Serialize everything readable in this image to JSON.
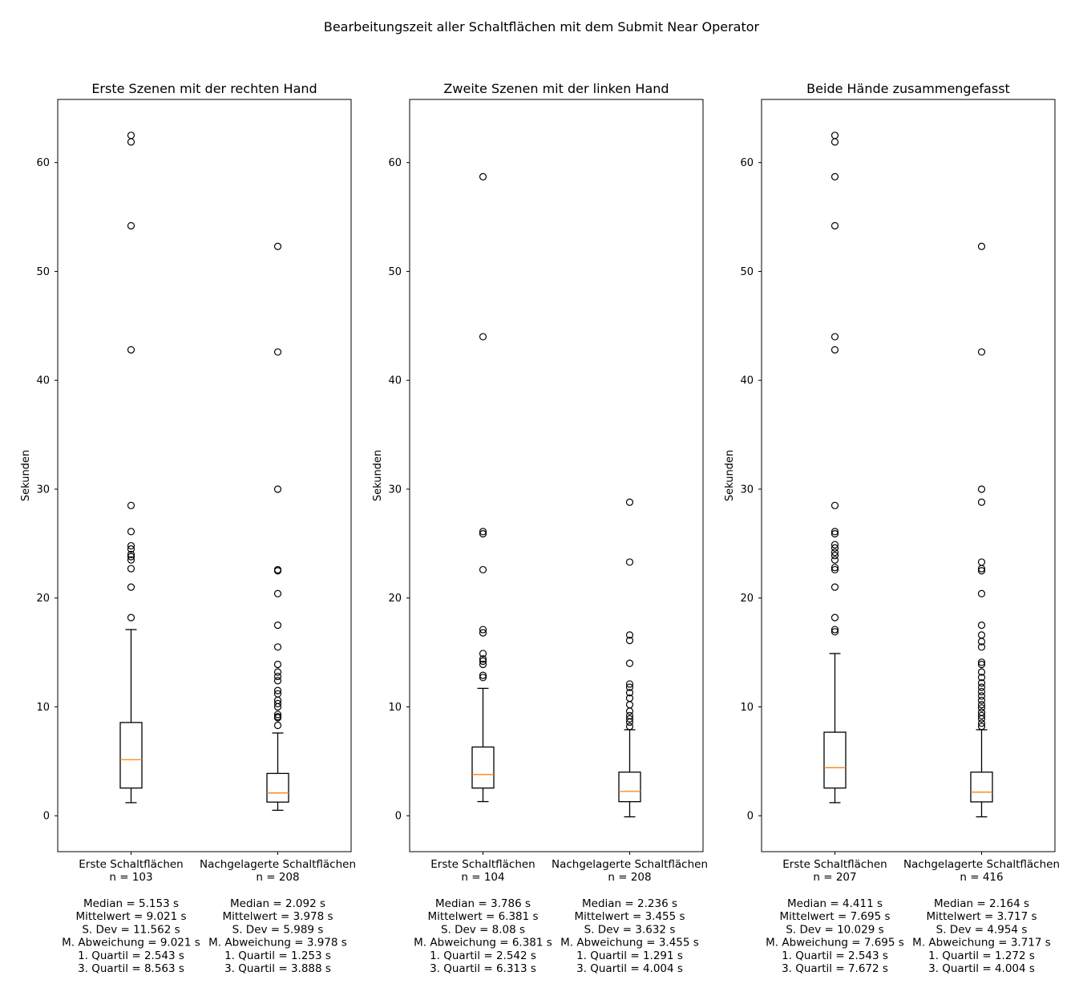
{
  "chart_data": {
    "type": "boxplot",
    "suptitle": "Bearbeitungszeit aller Schaltflächen mit dem Submit Near Operator",
    "ylabel": "Sekunden",
    "ylim": [
      -3.3,
      65.8
    ],
    "yticks": [
      0,
      10,
      20,
      30,
      40,
      50,
      60
    ],
    "colors": {
      "box": "#000000",
      "median": "#ff7f0e",
      "outlier": "#000000"
    },
    "panels": [
      {
        "title": "Erste Szenen mit der rechten Hand",
        "boxes": [
          {
            "label": "Erste Schaltflächen",
            "n": "n = 103",
            "stats": [
              "Median = 5.153 s",
              "Mittelwert = 9.021 s",
              "S. Dev = 11.562 s",
              "M. Abweichung = 9.021 s",
              "1. Quartil = 2.543 s",
              "3. Quartil = 8.563 s"
            ],
            "whislo": 1.2,
            "q1": 2.543,
            "med": 5.153,
            "q3": 8.563,
            "whishi": 17.1,
            "fliers": [
              18.2,
              21.0,
              22.7,
              23.5,
              23.8,
              24.0,
              24.5,
              24.8,
              26.1,
              28.5,
              42.8,
              54.2,
              61.9,
              62.5
            ]
          },
          {
            "label": "Nachgelagerte Schaltflächen",
            "n": "n = 208",
            "stats": [
              "Median = 2.092 s",
              "Mittelwert = 3.978 s",
              "S. Dev = 5.989 s",
              "M. Abweichung = 3.978 s",
              "1. Quartil = 1.253 s",
              "3. Quartil = 3.888 s"
            ],
            "whislo": 0.5,
            "q1": 1.253,
            "med": 2.092,
            "q3": 3.888,
            "whishi": 7.6,
            "fliers": [
              8.3,
              9.0,
              9.1,
              9.3,
              10.0,
              10.3,
              10.6,
              11.2,
              11.5,
              12.4,
              12.8,
              13.2,
              13.9,
              15.5,
              17.5,
              20.4,
              22.5,
              22.6,
              30.0,
              42.6,
              52.3
            ]
          }
        ]
      },
      {
        "title": "Zweite Szenen mit der linken Hand",
        "boxes": [
          {
            "label": "Erste Schaltflächen",
            "n": "n = 104",
            "stats": [
              "Median = 3.786 s",
              "Mittelwert = 6.381 s",
              "S. Dev = 8.08 s",
              "M. Abweichung = 6.381 s",
              "1. Quartil = 2.542 s",
              "3. Quartil = 6.313 s"
            ],
            "whislo": 1.3,
            "q1": 2.542,
            "med": 3.786,
            "q3": 6.313,
            "whishi": 11.7,
            "fliers": [
              12.7,
              12.9,
              13.9,
              14.2,
              14.4,
              14.9,
              16.8,
              17.1,
              22.6,
              25.9,
              26.1,
              44.0,
              58.7
            ]
          },
          {
            "label": "Nachgelagerte Schaltflächen",
            "n": "n = 208",
            "stats": [
              "Median = 2.236 s",
              "Mittelwert = 3.455 s",
              "S. Dev = 3.632 s",
              "M. Abweichung = 3.455 s",
              "1. Quartil = 1.291 s",
              "3. Quartil = 4.004 s"
            ],
            "whislo": -0.1,
            "q1": 1.291,
            "med": 2.236,
            "q3": 4.004,
            "whishi": 7.9,
            "fliers": [
              8.2,
              8.6,
              8.9,
              9.2,
              9.6,
              10.2,
              10.8,
              11.3,
              11.8,
              12.1,
              14.0,
              16.1,
              16.6,
              23.3,
              28.8
            ]
          }
        ]
      },
      {
        "title": "Beide Hände zusammengefasst",
        "boxes": [
          {
            "label": "Erste Schaltflächen",
            "n": "n = 207",
            "stats": [
              "Median = 4.411 s",
              "Mittelwert = 7.695 s",
              "S. Dev = 10.029 s",
              "M. Abweichung = 7.695 s",
              "1. Quartil = 2.543 s",
              "3. Quartil = 7.672 s"
            ],
            "whislo": 1.2,
            "q1": 2.543,
            "med": 4.411,
            "q3": 7.672,
            "whishi": 14.9,
            "fliers": [
              16.9,
              17.1,
              18.2,
              21.0,
              22.6,
              22.8,
              23.5,
              23.9,
              24.2,
              24.6,
              24.9,
              25.9,
              26.1,
              28.5,
              42.8,
              44.0,
              54.2,
              58.7,
              61.9,
              62.5
            ]
          },
          {
            "label": "Nachgelagerte Schaltflächen",
            "n": "n = 416",
            "stats": [
              "Median = 2.164 s",
              "Mittelwert = 3.717 s",
              "S. Dev = 4.954 s",
              "M. Abweichung = 3.717 s",
              "1. Quartil = 1.272 s",
              "3. Quartil = 4.004 s"
            ],
            "whislo": -0.1,
            "q1": 1.272,
            "med": 2.164,
            "q3": 4.004,
            "whishi": 7.9,
            "fliers": [
              8.2,
              8.5,
              8.9,
              9.2,
              9.5,
              9.9,
              10.2,
              10.6,
              11.0,
              11.4,
              11.8,
              12.2,
              12.7,
              13.2,
              13.9,
              14.1,
              15.5,
              16.0,
              16.6,
              17.5,
              20.4,
              22.5,
              22.7,
              23.3,
              28.8,
              30.0,
              42.6,
              52.3
            ]
          }
        ]
      }
    ]
  }
}
